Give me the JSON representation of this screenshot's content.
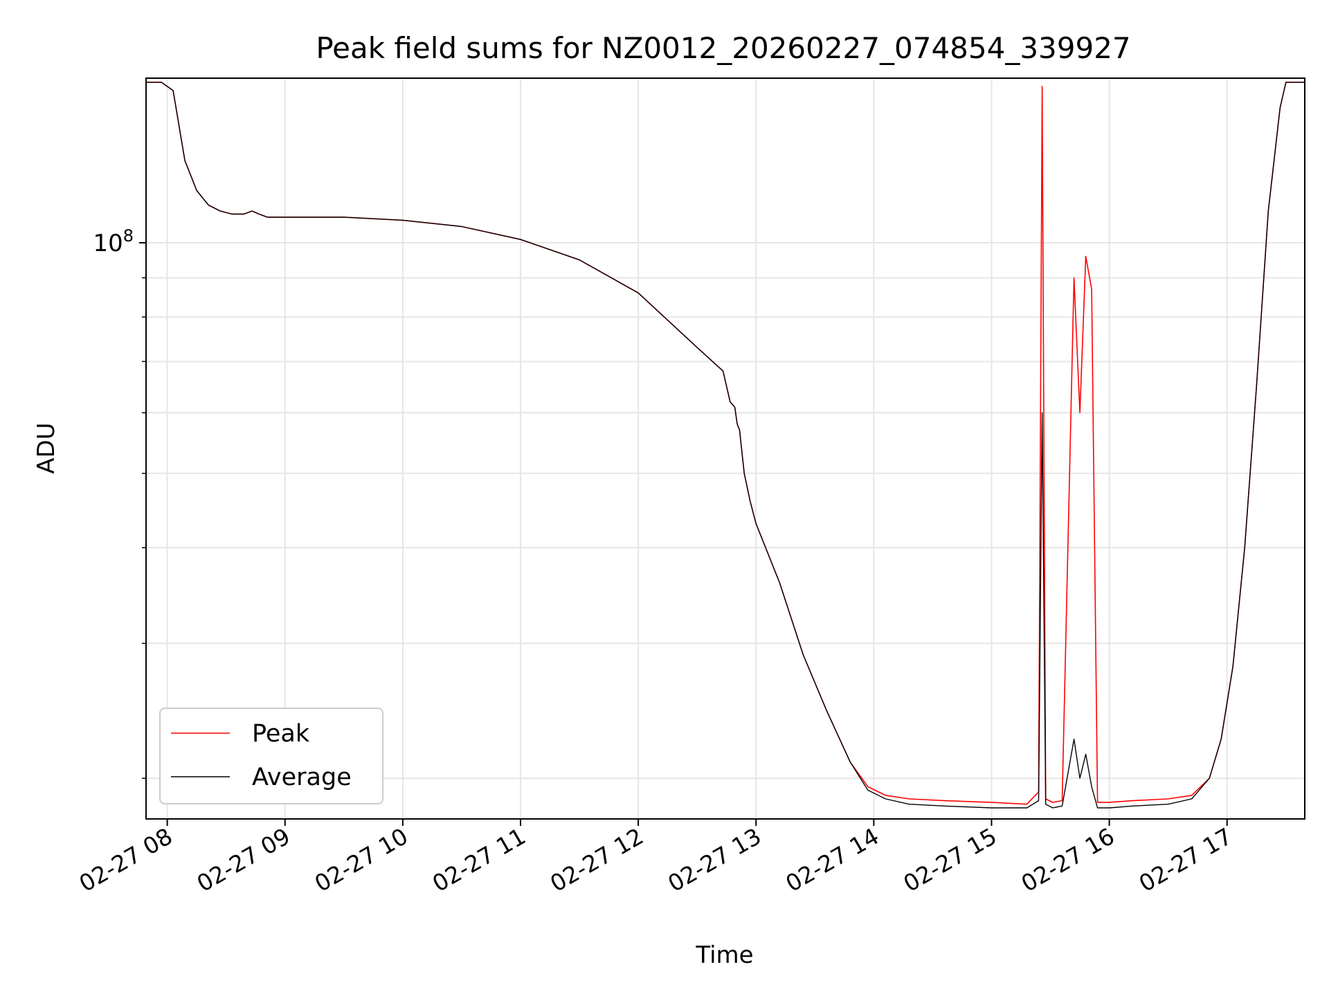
{
  "chart_data": {
    "type": "line",
    "title": "Peak field sums for NZ0012_20260227_074854_339927",
    "xlabel": "Time",
    "ylabel": "ADU",
    "yscale": "log",
    "ylim": [
      17700000,
      164000000
    ],
    "xlim_hours": [
      7.82,
      17.66
    ],
    "grid": true,
    "legend_position": "lower-left",
    "major_ytick": {
      "value": 100000000,
      "label_base": "10",
      "label_exp": "8"
    },
    "minor_yticks": [
      20000000,
      30000000,
      40000000,
      50000000,
      60000000,
      70000000,
      80000000,
      90000000,
      200000000
    ],
    "xticks": [
      {
        "hour": 8,
        "label": "02-27 08"
      },
      {
        "hour": 9,
        "label": "02-27 09"
      },
      {
        "hour": 10,
        "label": "02-27 10"
      },
      {
        "hour": 11,
        "label": "02-27 11"
      },
      {
        "hour": 12,
        "label": "02-27 12"
      },
      {
        "hour": 13,
        "label": "02-27 13"
      },
      {
        "hour": 14,
        "label": "02-27 14"
      },
      {
        "hour": 15,
        "label": "02-27 15"
      },
      {
        "hour": 16,
        "label": "02-27 16"
      },
      {
        "hour": 17,
        "label": "02-27 17"
      }
    ],
    "x_hours": [
      7.82,
      7.95,
      8.05,
      8.15,
      8.25,
      8.35,
      8.45,
      8.55,
      8.65,
      8.72,
      8.78,
      8.85,
      8.93,
      9.0,
      9.5,
      10.0,
      10.5,
      11.0,
      11.5,
      12.0,
      12.5,
      12.72,
      12.78,
      12.82,
      12.84,
      12.86,
      12.9,
      12.95,
      13.0,
      13.2,
      13.4,
      13.6,
      13.8,
      13.95,
      14.1,
      14.3,
      14.6,
      15.0,
      15.3,
      15.4,
      15.43,
      15.46,
      15.52,
      15.6,
      15.7,
      15.75,
      15.8,
      15.85,
      15.9,
      16.0,
      16.2,
      16.5,
      16.7,
      16.85,
      16.95,
      17.05,
      17.15,
      17.25,
      17.35,
      17.45,
      17.5,
      17.66
    ],
    "series": [
      {
        "name": "Peak",
        "color": "#ff0000",
        "values": [
          162000000,
          162000000,
          158000000,
          128000000,
          117000000,
          112000000,
          110000000,
          109000000,
          109000000,
          110000000,
          109000000,
          108000000,
          108000000,
          108000000,
          108000000,
          107000000,
          105000000,
          101000000,
          95000000,
          86000000,
          73000000,
          68000000,
          62000000,
          61000000,
          58000000,
          57000000,
          50000000,
          46000000,
          43000000,
          36000000,
          29000000,
          24500000,
          21000000,
          19500000,
          19000000,
          18800000,
          18700000,
          18600000,
          18500000,
          19200000,
          160000000,
          18800000,
          18600000,
          18700000,
          90000000,
          60000000,
          96000000,
          87000000,
          18600000,
          18600000,
          18700000,
          18800000,
          19000000,
          20000000,
          22500000,
          28000000,
          40000000,
          65000000,
          110000000,
          150000000,
          162000000,
          162000000
        ]
      },
      {
        "name": "Average",
        "color": "#000000",
        "values": [
          162000000,
          162000000,
          158000000,
          128000000,
          117000000,
          112000000,
          110000000,
          109000000,
          109000000,
          110000000,
          109000000,
          108000000,
          108000000,
          108000000,
          108000000,
          107000000,
          105000000,
          101000000,
          95000000,
          86000000,
          73000000,
          68000000,
          62000000,
          61000000,
          58000000,
          57000000,
          50000000,
          46000000,
          43000000,
          36000000,
          29000000,
          24500000,
          21000000,
          19300000,
          18800000,
          18500000,
          18400000,
          18300000,
          18300000,
          18700000,
          60000000,
          18500000,
          18300000,
          18400000,
          22500000,
          20000000,
          21500000,
          19500000,
          18300000,
          18300000,
          18400000,
          18500000,
          18800000,
          20000000,
          22500000,
          28000000,
          40000000,
          65000000,
          110000000,
          150000000,
          162000000,
          162000000
        ]
      }
    ]
  }
}
